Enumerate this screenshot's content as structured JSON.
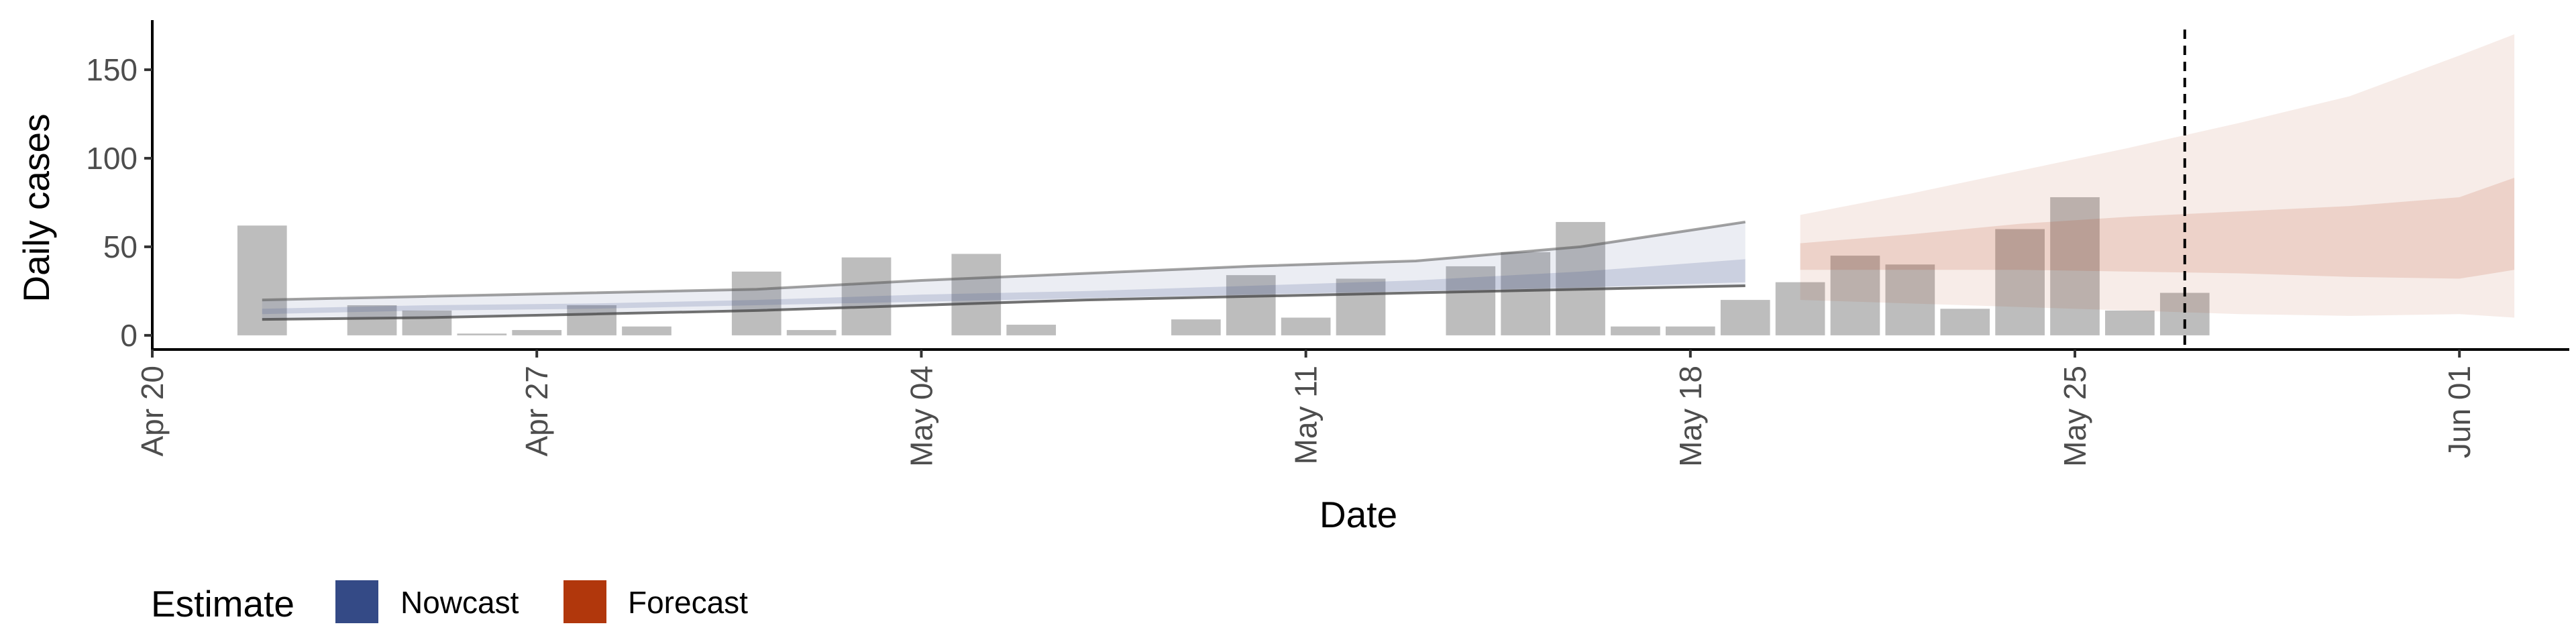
{
  "chart_data": {
    "type": "bar",
    "xlabel": "Date",
    "ylabel": "Daily cases",
    "ylim": [
      -8,
      178
    ],
    "xlim": [
      "2020-04-20",
      "2020-06-03"
    ],
    "grid": false,
    "legend_position": "bottom-left",
    "y_ticks": [
      "0",
      "50",
      "100",
      "150"
    ],
    "x_ticks": [
      {
        "date": "2020-04-20",
        "label": "Apr 20"
      },
      {
        "date": "2020-04-27",
        "label": "Apr 27"
      },
      {
        "date": "2020-05-04",
        "label": "May 04"
      },
      {
        "date": "2020-05-11",
        "label": "May 11"
      },
      {
        "date": "2020-05-18",
        "label": "May 18"
      },
      {
        "date": "2020-05-25",
        "label": "May 25"
      },
      {
        "date": "2020-06-01",
        "label": "Jun 01"
      }
    ],
    "reported_cases": {
      "dates": [
        "2020-04-22",
        "2020-04-23",
        "2020-04-24",
        "2020-04-25",
        "2020-04-26",
        "2020-04-27",
        "2020-04-28",
        "2020-04-29",
        "2020-04-30",
        "2020-05-01",
        "2020-05-02",
        "2020-05-03",
        "2020-05-04",
        "2020-05-05",
        "2020-05-06",
        "2020-05-07",
        "2020-05-08",
        "2020-05-09",
        "2020-05-10",
        "2020-05-11",
        "2020-05-12",
        "2020-05-13",
        "2020-05-14",
        "2020-05-15",
        "2020-05-16",
        "2020-05-17",
        "2020-05-18",
        "2020-05-19",
        "2020-05-20",
        "2020-05-21",
        "2020-05-22",
        "2020-05-23",
        "2020-05-24",
        "2020-05-25",
        "2020-05-26",
        "2020-05-27"
      ],
      "values": [
        62,
        0,
        17,
        14,
        1,
        3,
        17,
        5,
        0,
        36,
        3,
        44,
        0,
        46,
        6,
        0,
        0,
        9,
        34,
        10,
        32,
        0,
        39,
        47,
        64,
        5,
        5,
        20,
        30,
        45,
        40,
        15,
        60,
        78,
        14,
        24
      ],
      "color": "#bdbdbd"
    },
    "series": [
      {
        "name": "Nowcast",
        "color": "#3b4f8c",
        "dates": [
          "2020-04-22",
          "2020-04-25",
          "2020-04-28",
          "2020-05-01",
          "2020-05-04",
          "2020-05-07",
          "2020-05-10",
          "2020-05-13",
          "2020-05-16",
          "2020-05-19"
        ],
        "upper90": [
          20,
          22,
          24,
          26,
          31,
          35,
          39,
          42,
          50,
          64
        ],
        "upper50": [
          15,
          17,
          18,
          20,
          23,
          25,
          28,
          31,
          36,
          43
        ],
        "lower50": [
          12,
          14,
          15,
          17,
          19,
          21,
          23,
          25,
          27,
          30
        ],
        "lower90": [
          9,
          10,
          12,
          14,
          17,
          20,
          22,
          24,
          26,
          28
        ]
      },
      {
        "name": "Forecast",
        "color": "#b2401a",
        "dates": [
          "2020-05-20",
          "2020-05-22",
          "2020-05-24",
          "2020-05-26",
          "2020-05-28",
          "2020-05-30",
          "2020-06-01",
          "2020-06-02"
        ],
        "upper90": [
          68,
          80,
          93,
          106,
          120,
          135,
          158,
          170
        ],
        "upper50": [
          52,
          57,
          63,
          67,
          70,
          73,
          78,
          89
        ],
        "lower50": [
          37,
          37,
          37,
          36,
          35,
          33,
          32,
          37
        ],
        "lower90": [
          20,
          18,
          16,
          14,
          12,
          11,
          12,
          10
        ]
      }
    ],
    "reference_line": {
      "date": "2020-05-27",
      "style": "dashed"
    },
    "legend": {
      "title": "Estimate",
      "entries": [
        {
          "label": "Nowcast",
          "color": "#344a86"
        },
        {
          "label": "Forecast",
          "color": "#b1370c"
        }
      ]
    }
  }
}
